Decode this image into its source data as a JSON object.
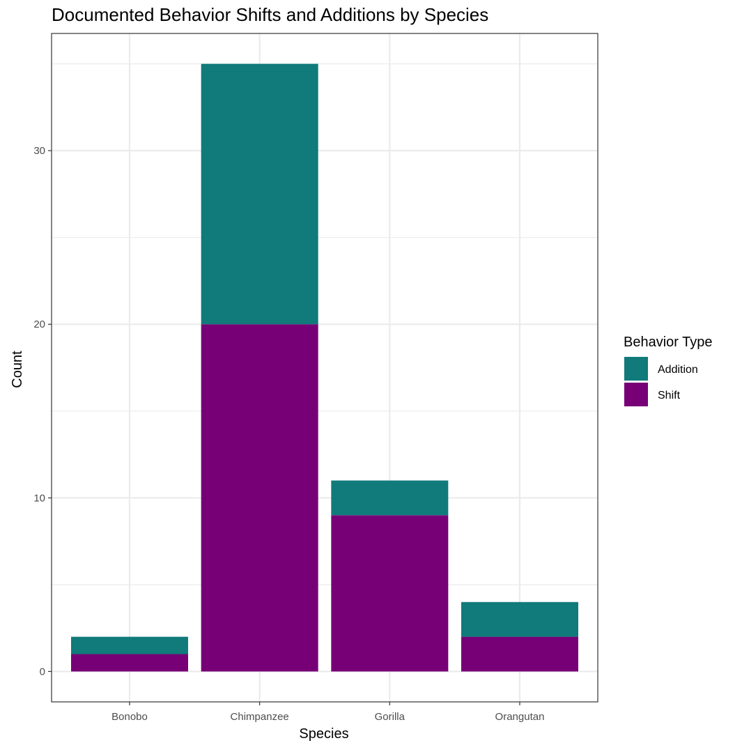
{
  "chart_data": {
    "type": "bar",
    "stacked": true,
    "title": "Documented Behavior Shifts and Additions by Species",
    "xlabel": "Species",
    "ylabel": "Count",
    "categories": [
      "Bonobo",
      "Chimpanzee",
      "Gorilla",
      "Orangutan"
    ],
    "series": [
      {
        "name": "Shift",
        "color": "#770077",
        "values": [
          1,
          20,
          9,
          2
        ]
      },
      {
        "name": "Addition",
        "color": "#117a7a",
        "values": [
          1,
          15,
          2,
          2
        ]
      }
    ],
    "yticks": [
      0,
      10,
      20,
      30
    ],
    "ylim": [
      -1.75,
      36.75
    ],
    "grid": true,
    "legend": {
      "title": "Behavior Type",
      "placement": "right",
      "entries": [
        "Addition",
        "Shift"
      ]
    }
  }
}
